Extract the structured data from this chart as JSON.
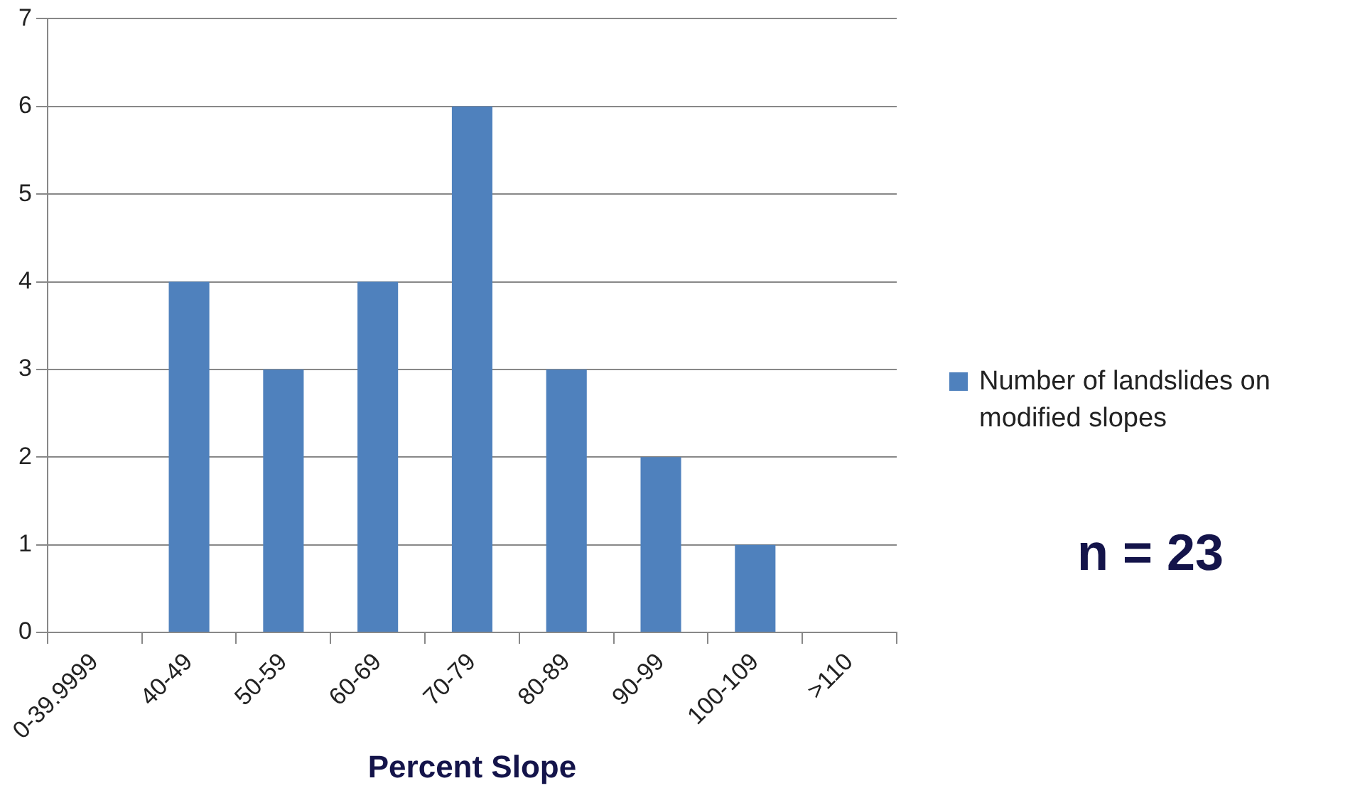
{
  "chart_data": {
    "type": "bar",
    "xlabel": "Percent Slope",
    "categories": [
      "0-39.9999",
      "40-49",
      "50-59",
      "60-69",
      "70-79",
      "80-89",
      "90-99",
      "100-109",
      ">110"
    ],
    "series": [
      {
        "name": "Number of landslides on modified slopes",
        "color": "#4f81bd",
        "values": [
          0,
          4,
          3,
          4,
          6,
          3,
          2,
          1,
          0
        ]
      }
    ],
    "ylim": [
      0,
      7
    ],
    "yticks": [
      0,
      1,
      2,
      3,
      4,
      5,
      6,
      7
    ],
    "grid": "y",
    "legend": "right",
    "annotations": [
      "n = 23"
    ]
  }
}
